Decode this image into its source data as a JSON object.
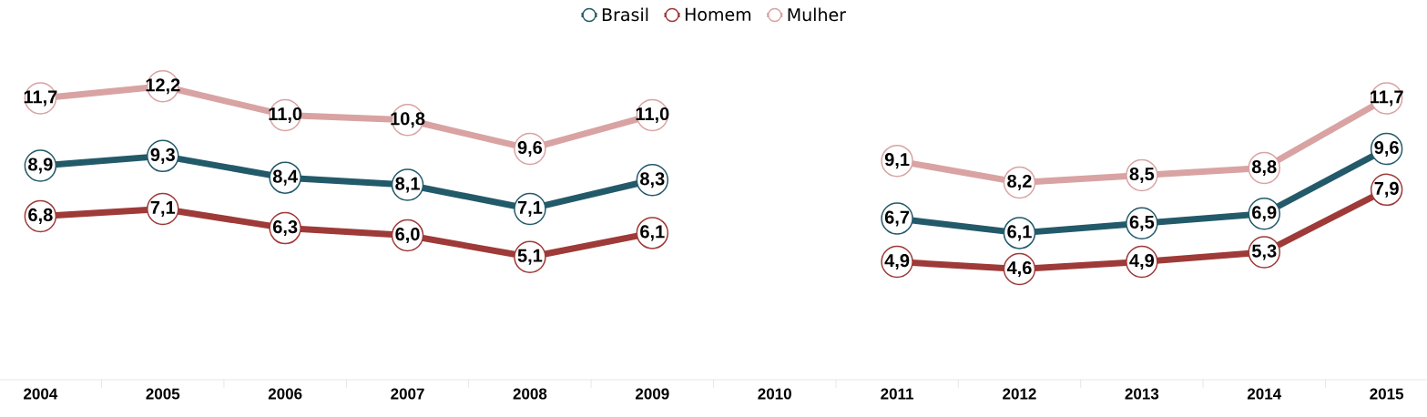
{
  "chart_data": {
    "type": "line",
    "categories": [
      "2004",
      "2005",
      "2006",
      "2007",
      "2008",
      "2009",
      "2010",
      "2011",
      "2012",
      "2013",
      "2014",
      "2015"
    ],
    "series": [
      {
        "name": "Brasil",
        "color": "#235a6a",
        "values": [
          8.9,
          9.3,
          8.4,
          8.1,
          7.1,
          8.3,
          null,
          6.7,
          6.1,
          6.5,
          6.9,
          9.6
        ],
        "value_labels": [
          "8,9",
          "9,3",
          "8,4",
          "8,1",
          "7,1",
          "8,3",
          null,
          "6,7",
          "6,1",
          "6,5",
          "6,9",
          "9,6"
        ]
      },
      {
        "name": "Homem",
        "color": "#9e3a38",
        "values": [
          6.8,
          7.1,
          6.3,
          6.0,
          5.1,
          6.1,
          null,
          4.9,
          4.6,
          4.9,
          5.3,
          7.9
        ],
        "value_labels": [
          "6,8",
          "7,1",
          "6,3",
          "6,0",
          "5,1",
          "6,1",
          null,
          "4,9",
          "4,6",
          "4,9",
          "5,3",
          "7,9"
        ]
      },
      {
        "name": "Mulher",
        "color": "#d9a3a3",
        "values": [
          11.7,
          12.2,
          11.0,
          10.8,
          9.6,
          11.0,
          null,
          9.1,
          8.2,
          8.5,
          8.8,
          11.7
        ],
        "value_labels": [
          "11,7",
          "12,2",
          "11,0",
          "10,8",
          "9,6",
          "11,0",
          null,
          "9,1",
          "8,2",
          "8,5",
          "8,8",
          "11,7"
        ]
      }
    ],
    "legend": "top",
    "marker": "circle",
    "line_style": "solid"
  }
}
